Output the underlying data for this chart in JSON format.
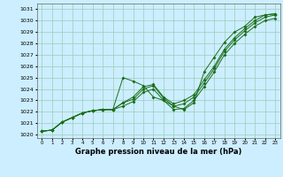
{
  "title": "Graphe pression niveau de la mer (hPa)",
  "bg_color": "#cceeff",
  "grid_color": "#99ccbb",
  "line_color": "#1a6e1a",
  "x_values": [
    0,
    1,
    2,
    3,
    4,
    5,
    6,
    7,
    8,
    9,
    10,
    11,
    12,
    13,
    14,
    15,
    16,
    17,
    18,
    19,
    20,
    21,
    22,
    23
  ],
  "line1": [
    1020.3,
    1020.4,
    1021.1,
    1021.5,
    1021.9,
    1022.1,
    1022.2,
    1022.2,
    1025.0,
    1024.7,
    1024.3,
    1023.3,
    1023.0,
    1022.5,
    1022.2,
    1022.8,
    1025.5,
    1026.8,
    1028.1,
    1029.0,
    1029.5,
    1030.3,
    1030.5,
    1030.6
  ],
  "line2": [
    1020.3,
    1020.4,
    1021.1,
    1021.5,
    1021.9,
    1022.1,
    1022.2,
    1022.2,
    1022.8,
    1023.3,
    1024.2,
    1024.4,
    1023.3,
    1022.7,
    1023.0,
    1023.5,
    1024.8,
    1026.0,
    1027.5,
    1028.5,
    1029.3,
    1030.0,
    1030.5,
    1030.6
  ],
  "line3": [
    1020.3,
    1020.4,
    1021.1,
    1021.5,
    1021.9,
    1022.1,
    1022.2,
    1022.2,
    1022.8,
    1023.1,
    1024.0,
    1024.3,
    1023.2,
    1022.5,
    1022.7,
    1023.3,
    1024.5,
    1025.8,
    1027.3,
    1028.3,
    1029.1,
    1029.8,
    1030.3,
    1030.5
  ],
  "line4": [
    1020.3,
    1020.4,
    1021.1,
    1021.5,
    1021.9,
    1022.1,
    1022.2,
    1022.2,
    1022.5,
    1022.9,
    1023.7,
    1024.0,
    1023.0,
    1022.2,
    1022.3,
    1023.0,
    1024.2,
    1025.5,
    1027.0,
    1028.0,
    1028.8,
    1029.5,
    1030.0,
    1030.2
  ],
  "ylim": [
    1019.7,
    1031.5
  ],
  "yticks": [
    1020,
    1021,
    1022,
    1023,
    1024,
    1025,
    1026,
    1027,
    1028,
    1029,
    1030,
    1031
  ],
  "xlim": [
    -0.5,
    23.5
  ],
  "xticks": [
    0,
    1,
    2,
    3,
    4,
    5,
    6,
    7,
    8,
    9,
    10,
    11,
    12,
    13,
    14,
    15,
    16,
    17,
    18,
    19,
    20,
    21,
    22,
    23
  ]
}
